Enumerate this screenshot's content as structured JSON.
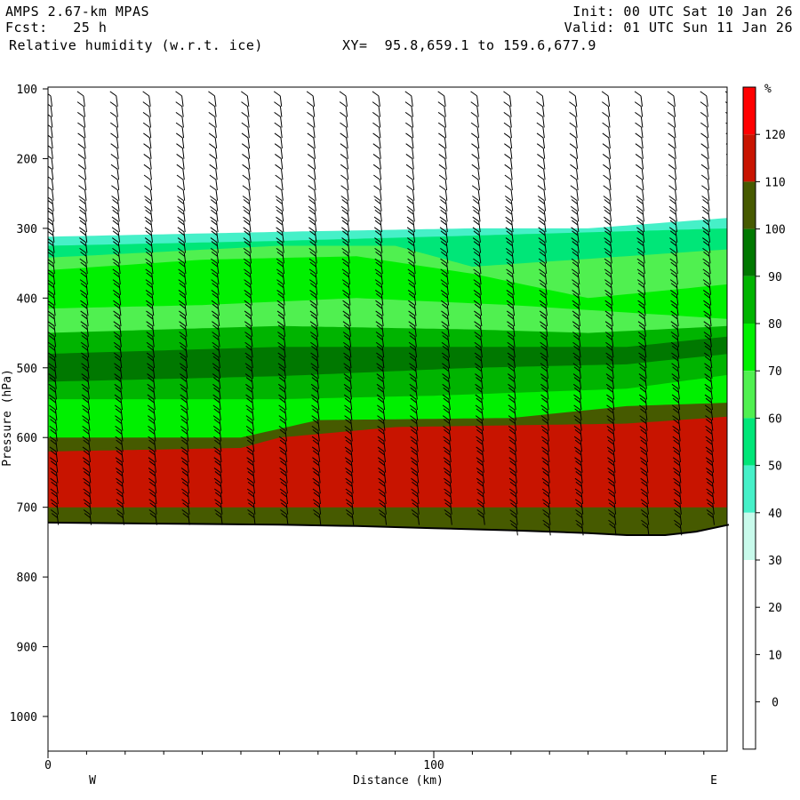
{
  "header": {
    "model": "AMPS 2.67-km MPAS",
    "init": "Init: 00 UTC Sat 10 Jan 26",
    "fcst": "Fcst:   25 h",
    "valid": "Valid: 01 UTC Sun 11 Jan 26",
    "field": "Relative humidity (w.r.t. ice)",
    "xy": "XY=  95.8,659.1 to 159.6,677.9"
  },
  "chart_data": {
    "type": "cross-section contour",
    "ylabel": "Pressure (hPa)",
    "xlabel": "Distance (km)",
    "y_axis": {
      "ticks": [
        100,
        200,
        300,
        400,
        500,
        600,
        700,
        800,
        900,
        1000
      ],
      "range": [
        100,
        1050
      ],
      "inverted": true
    },
    "x_axis": {
      "tick_labels": [
        {
          "value": 0,
          "label": "0"
        },
        {
          "value": 100,
          "label": "100"
        }
      ],
      "minor_every": 10,
      "range": [
        0,
        176.5
      ]
    },
    "side_labels": {
      "left": "W",
      "right": "E"
    },
    "colorbar": {
      "unit": "%",
      "labels": [
        120,
        110,
        100,
        90,
        80,
        70,
        60,
        50,
        40,
        30,
        20,
        10,
        0
      ],
      "levels": [
        {
          "min": 120,
          "color": "#ff0000"
        },
        {
          "min": 110,
          "color": "#c81400"
        },
        {
          "min": 100,
          "color": "#465a00"
        },
        {
          "min": 90,
          "color": "#007800"
        },
        {
          "min": 80,
          "color": "#00b400"
        },
        {
          "min": 70,
          "color": "#00f000"
        },
        {
          "min": 60,
          "color": "#50f050"
        },
        {
          "min": 50,
          "color": "#00e678"
        },
        {
          "min": 40,
          "color": "#46f0c8"
        },
        {
          "min": 30,
          "color": "#c8faeb"
        },
        {
          "min": 20,
          "color": "#ffffff"
        },
        {
          "min": 10,
          "color": "#ffffff"
        },
        {
          "min": 0,
          "color": "#ffffff"
        },
        {
          "min": -10,
          "color": "#ffffff"
        }
      ]
    },
    "terrain_pressure": [
      [
        0,
        722
      ],
      [
        20,
        723
      ],
      [
        40,
        724
      ],
      [
        60,
        725
      ],
      [
        80,
        727
      ],
      [
        100,
        730
      ],
      [
        120,
        733
      ],
      [
        140,
        737
      ],
      [
        150,
        740
      ],
      [
        160,
        740
      ],
      [
        168,
        735
      ],
      [
        176.5,
        725
      ]
    ],
    "rh_layers": [
      {
        "top": [
          [
            0,
            312
          ],
          [
            60,
            305
          ],
          [
            110,
            300
          ],
          [
            140,
            300
          ],
          [
            176.5,
            285
          ]
        ],
        "level": 40
      },
      {
        "top": [
          [
            0,
            325
          ],
          [
            60,
            318
          ],
          [
            100,
            312
          ],
          [
            176.5,
            300
          ]
        ],
        "level": 50
      },
      {
        "top": [
          [
            0,
            342
          ],
          [
            60,
            325
          ],
          [
            90,
            325
          ],
          [
            110,
            355
          ],
          [
            176.5,
            330
          ]
        ],
        "level": 60
      },
      {
        "top": [
          [
            0,
            360
          ],
          [
            40,
            345
          ],
          [
            80,
            340
          ],
          [
            110,
            365
          ],
          [
            140,
            400
          ],
          [
            176.5,
            380
          ]
        ],
        "level": 70
      },
      {
        "top": [
          [
            0,
            415
          ],
          [
            40,
            410
          ],
          [
            80,
            400
          ],
          [
            120,
            410
          ],
          [
            176.5,
            430
          ]
        ],
        "level": 60
      },
      {
        "top": [
          [
            0,
            450
          ],
          [
            60,
            440
          ],
          [
            110,
            445
          ],
          [
            140,
            450
          ],
          [
            176.5,
            440
          ]
        ],
        "level": 80
      },
      {
        "top": [
          [
            0,
            480
          ],
          [
            60,
            470
          ],
          [
            110,
            470
          ],
          [
            150,
            470
          ],
          [
            176.5,
            455
          ]
        ],
        "level": 90
      },
      {
        "top": [
          [
            0,
            520
          ],
          [
            60,
            512
          ],
          [
            110,
            500
          ],
          [
            150,
            495
          ],
          [
            176.5,
            480
          ]
        ],
        "level": 80
      },
      {
        "top": [
          [
            0,
            545
          ],
          [
            60,
            545
          ],
          [
            100,
            540
          ],
          [
            150,
            530
          ],
          [
            176.5,
            510
          ]
        ],
        "level": 70
      },
      {
        "top": [
          [
            0,
            600
          ],
          [
            50,
            600
          ],
          [
            70,
            575
          ],
          [
            120,
            572
          ],
          [
            150,
            555
          ],
          [
            176.5,
            550
          ]
        ],
        "level": 100
      },
      {
        "top": [
          [
            0,
            620
          ],
          [
            50,
            615
          ],
          [
            60,
            600
          ],
          [
            90,
            585
          ],
          [
            150,
            580
          ],
          [
            176.5,
            570
          ]
        ],
        "level": 110
      },
      {
        "top": [
          [
            0,
            700
          ],
          [
            176.5,
            700
          ]
        ],
        "level": 100
      }
    ],
    "wind_barb_columns_km": [
      0,
      8.5,
      17,
      25.5,
      34,
      42.5,
      51,
      59.5,
      68,
      76.5,
      85,
      93.5,
      102,
      110.5,
      119,
      127.5,
      136,
      144.5,
      153,
      161.5,
      170,
      176.5
    ]
  }
}
